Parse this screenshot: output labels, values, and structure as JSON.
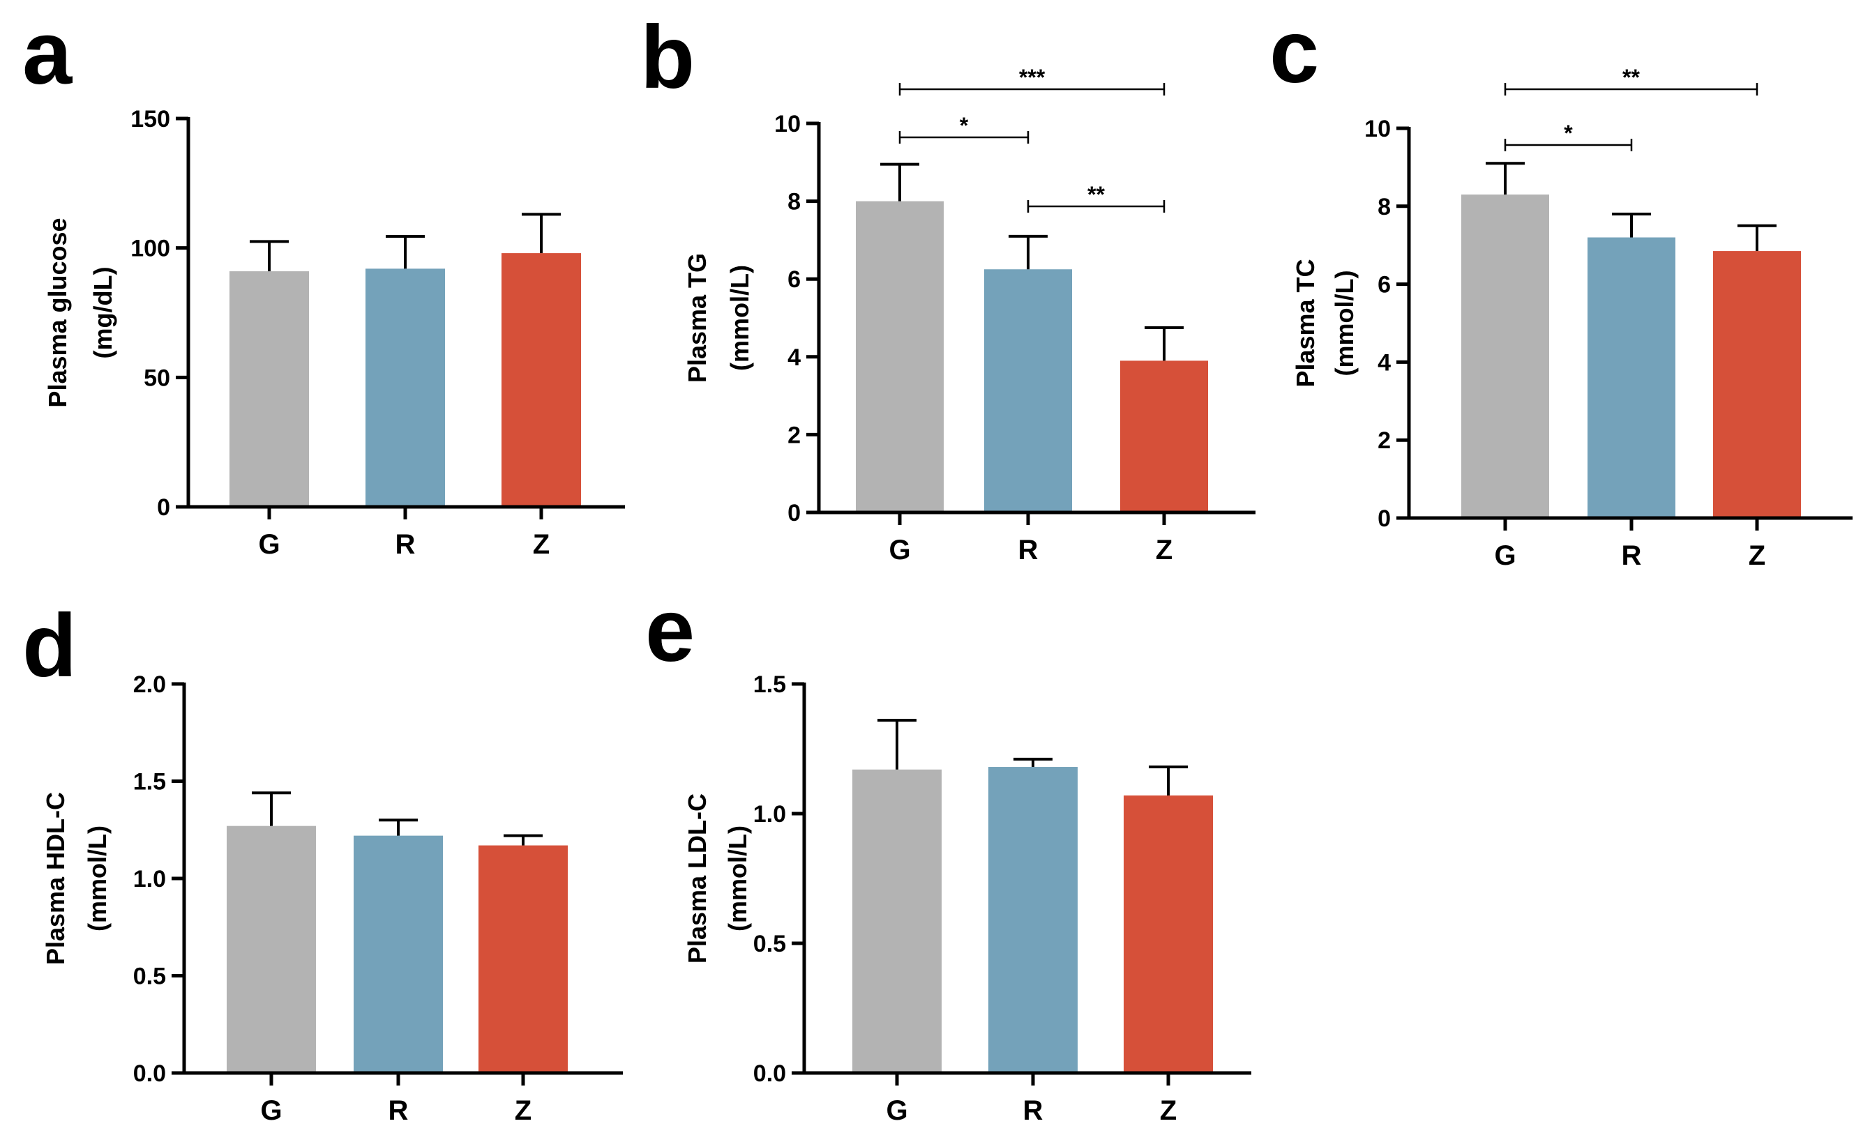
{
  "figure": {
    "colors": {
      "G": "#b3b3b3",
      "R": "#74a2ba",
      "Z": "#d65039",
      "axis": "#000000"
    }
  },
  "chart_data": [
    {
      "panel": "a",
      "type": "bar",
      "ylabel": [
        "Plasma glucose",
        "(mg/dL)"
      ],
      "categories": [
        "G",
        "R",
        "Z"
      ],
      "values": [
        91,
        92,
        98
      ],
      "errors": [
        11.5,
        12.5,
        15
      ],
      "ylim": [
        0,
        150
      ],
      "ticks": [
        0,
        50,
        100,
        150
      ],
      "tick_labels": [
        "0",
        "50",
        "100",
        "150"
      ],
      "significance": []
    },
    {
      "panel": "b",
      "type": "bar",
      "ylabel": [
        "Plasma TG",
        "(mmol/L)"
      ],
      "categories": [
        "G",
        "R",
        "Z"
      ],
      "values": [
        8.0,
        6.25,
        3.9
      ],
      "errors": [
        0.95,
        0.85,
        0.85
      ],
      "ylim": [
        0,
        10
      ],
      "ticks": [
        0,
        2,
        4,
        6,
        8,
        10
      ],
      "tick_labels": [
        "0",
        "2",
        "4",
        "6",
        "8",
        "10"
      ],
      "significance": [
        {
          "from": "G",
          "to": "Z",
          "label": "***"
        },
        {
          "from": "G",
          "to": "R",
          "label": "*"
        },
        {
          "from": "R",
          "to": "Z",
          "label": "**"
        }
      ]
    },
    {
      "panel": "c",
      "type": "bar",
      "ylabel": [
        "Plasma TC",
        "(mmol/L)"
      ],
      "categories": [
        "G",
        "R",
        "Z"
      ],
      "values": [
        8.3,
        7.2,
        6.85
      ],
      "errors": [
        0.8,
        0.6,
        0.65
      ],
      "ylim": [
        0,
        10
      ],
      "ticks": [
        0,
        2,
        4,
        6,
        8,
        10
      ],
      "tick_labels": [
        "0",
        "2",
        "4",
        "6",
        "8",
        "10"
      ],
      "significance": [
        {
          "from": "G",
          "to": "Z",
          "label": "**"
        },
        {
          "from": "G",
          "to": "R",
          "label": "*"
        }
      ]
    },
    {
      "panel": "d",
      "type": "bar",
      "ylabel": [
        "Plasma HDL-C",
        "(mmol/L)"
      ],
      "categories": [
        "G",
        "R",
        "Z"
      ],
      "values": [
        1.27,
        1.22,
        1.17
      ],
      "errors": [
        0.17,
        0.08,
        0.05
      ],
      "ylim": [
        0,
        2.0
      ],
      "ticks": [
        0,
        0.5,
        1.0,
        1.5,
        2.0
      ],
      "tick_labels": [
        "0.0",
        "0.5",
        "1.0",
        "1.5",
        "2.0"
      ],
      "significance": []
    },
    {
      "panel": "e",
      "type": "bar",
      "ylabel": [
        "Plasma LDL-C",
        "(mmol/L)"
      ],
      "categories": [
        "G",
        "R",
        "Z"
      ],
      "values": [
        1.17,
        1.18,
        1.07
      ],
      "errors": [
        0.19,
        0.03,
        0.11
      ],
      "ylim": [
        0,
        1.5
      ],
      "ticks": [
        0,
        0.5,
        1.0,
        1.5
      ],
      "tick_labels": [
        "0.0",
        "0.5",
        "1.0",
        "1.5"
      ],
      "significance": []
    }
  ]
}
